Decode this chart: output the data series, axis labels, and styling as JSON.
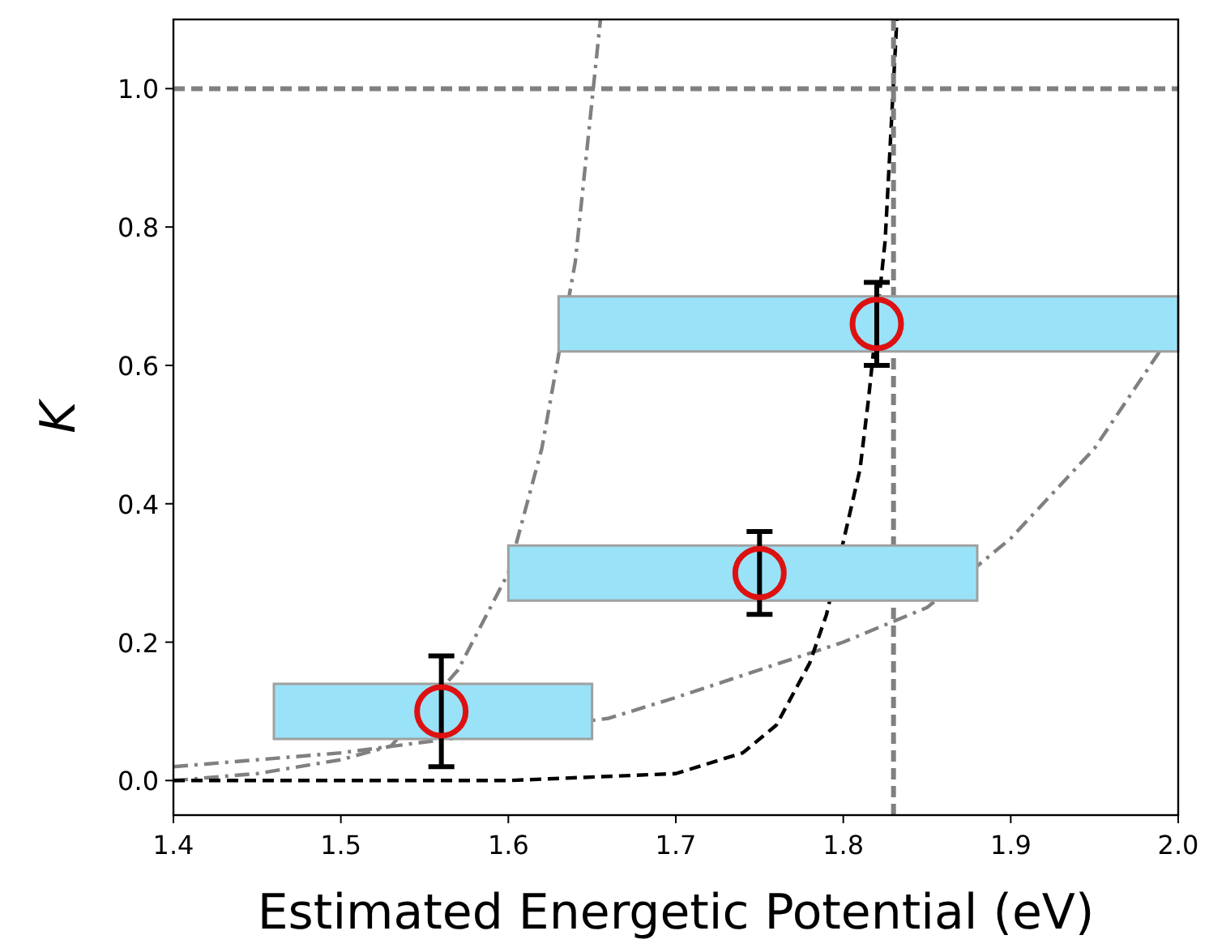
{
  "chart_data": {
    "type": "scatter",
    "xlabel": "Estimated Energetic Potential (eV)",
    "ylabel": "K",
    "xlim": [
      1.4,
      2.0
    ],
    "ylim": [
      -0.05,
      1.1
    ],
    "xticks": [
      1.4,
      1.5,
      1.6,
      1.7,
      1.8,
      1.9,
      {
        "value": 2,
        "label": "2.0"
      }
    ],
    "yticks": [
      {
        "value": 0,
        "label": "0.0"
      },
      0.2,
      0.4,
      0.6,
      0.8,
      {
        "value": 1,
        "label": "1.0"
      }
    ],
    "grid": false,
    "ref_lines": [
      {
        "axis": "y",
        "value": 1.0,
        "color": "#808080",
        "line_style": "dashed"
      },
      {
        "axis": "x",
        "value": 1.83,
        "color": "#808080",
        "line_style": "dashed"
      }
    ],
    "series": [
      {
        "type": "line",
        "color": "#808080",
        "line_style": "dashdot",
        "x": [
          1.4,
          1.45,
          1.5,
          1.53,
          1.57,
          1.6,
          1.62,
          1.64,
          1.655
        ],
        "values": [
          0.0,
          0.01,
          0.03,
          0.05,
          0.16,
          0.3,
          0.48,
          0.75,
          1.1
        ]
      },
      {
        "type": "line",
        "color": "#808080",
        "line_style": "dashdot",
        "x": [
          1.4,
          1.5,
          1.66,
          1.7,
          1.8,
          1.85,
          1.9,
          1.95,
          2.0
        ],
        "values": [
          0.02,
          0.04,
          0.09,
          0.12,
          0.2,
          0.25,
          0.35,
          0.48,
          0.66
        ]
      },
      {
        "type": "line",
        "color": "#000000",
        "line_style": "dashed",
        "x": [
          1.4,
          1.6,
          1.7,
          1.74,
          1.76,
          1.78,
          1.79,
          1.81,
          1.815,
          1.825,
          1.832
        ],
        "values": [
          0.0,
          0.0,
          0.01,
          0.04,
          0.08,
          0.17,
          0.24,
          0.45,
          0.55,
          0.78,
          1.1
        ]
      },
      {
        "color": "#dd1111",
        "marker": "circle",
        "x": [
          1.56,
          1.75,
          1.82
        ],
        "values": [
          0.1,
          0.3,
          0.66
        ],
        "errors": [
          0.08,
          0.06,
          0.06
        ],
        "xerrors": [
          [
            1.46,
            1.65
          ],
          [
            1.6,
            1.88
          ],
          [
            1.63,
            2.0
          ]
        ]
      }
    ]
  }
}
